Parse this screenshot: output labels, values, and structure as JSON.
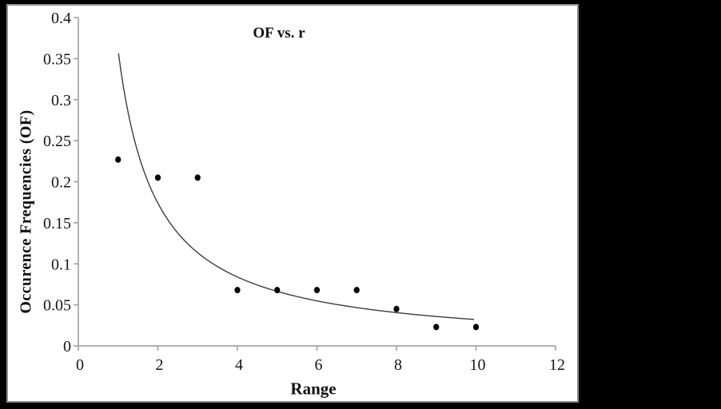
{
  "window": {
    "background_color": "#000000",
    "panel_background_color": "#ffffff",
    "panel_border_color": "#8f8f8f"
  },
  "chart_data": {
    "type": "scatter",
    "title": "OF vs. r",
    "xlabel": "Range",
    "ylabel": "Occurence Frequencies (OF)",
    "x": [
      1,
      2,
      3,
      4,
      5,
      6,
      7,
      8,
      9,
      10
    ],
    "y": [
      0.227,
      0.205,
      0.205,
      0.068,
      0.068,
      0.068,
      0.068,
      0.045,
      0.023,
      0.023
    ],
    "xlim": [
      0,
      12
    ],
    "ylim": [
      0,
      0.4
    ],
    "xticks": {
      "values": [
        0,
        2,
        4,
        6,
        8,
        10,
        12
      ],
      "labels": [
        "0",
        "2",
        "4",
        "6",
        "8",
        "10",
        "12"
      ]
    },
    "yticks": {
      "values": [
        0,
        0.05,
        0.1,
        0.15,
        0.2,
        0.25,
        0.3,
        0.35,
        0.4
      ],
      "labels": [
        "0",
        "0.05",
        "0.1",
        "0.15",
        "0.2",
        "0.25",
        "0.3",
        "0.35",
        "0.4"
      ]
    },
    "grid": false,
    "legend": null,
    "trendline": {
      "type": "power",
      "a": 0.36,
      "b": -1.05,
      "from": 1.01,
      "to": 9.95
    },
    "style": {
      "marker_color": "#000000",
      "curve_color": "#3d3d3d",
      "axis_color": "#a6a6a6",
      "text_color": "#161616"
    }
  }
}
